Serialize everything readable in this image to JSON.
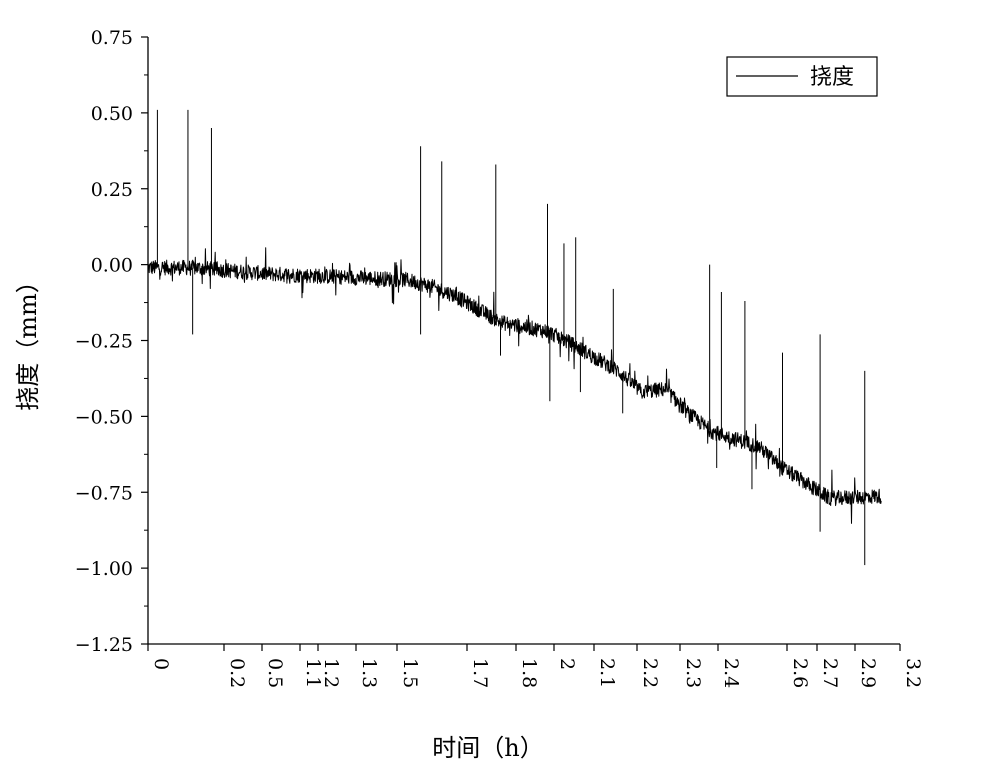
{
  "chart_data": {
    "type": "line",
    "title": "",
    "xlabel": "时间（h）",
    "ylabel": "挠度（mm）",
    "ylim": [
      -1.25,
      0.75
    ],
    "yticks": [
      0.75,
      0.5,
      0.25,
      0.0,
      -0.25,
      -0.5,
      -0.75,
      -1.0,
      -1.25
    ],
    "ytick_labels": [
      "0.75",
      "0.50",
      "0.25",
      "0.00",
      "−0.25",
      "−0.50",
      "−0.75",
      "−1.00",
      "−1.25"
    ],
    "xtick_labels": [
      "0",
      "0.2",
      "0.5",
      "1.1",
      "1.2",
      "1.3",
      "1.5",
      "1.7",
      "1.8",
      "2",
      "2.1",
      "2.2",
      "2.3",
      "2.4",
      "2.6",
      "2.7",
      "2.9",
      "3.2"
    ],
    "x_axis_note": "nonuniform categorical tick positions",
    "legend": {
      "entries": [
        "挠度"
      ],
      "position": "top-right"
    },
    "grid": false,
    "series": [
      {
        "name": "挠度",
        "color": "#000000",
        "trend": [
          {
            "x": 0.0,
            "y": -0.01
          },
          {
            "x": 0.2,
            "y": -0.01
          },
          {
            "x": 0.5,
            "y": -0.03
          },
          {
            "x": 1.1,
            "y": -0.05
          },
          {
            "x": 1.2,
            "y": -0.07
          },
          {
            "x": 1.3,
            "y": -0.1
          },
          {
            "x": 1.5,
            "y": -0.19
          },
          {
            "x": 1.7,
            "y": -0.22
          },
          {
            "x": 1.8,
            "y": -0.26
          },
          {
            "x": 2.0,
            "y": -0.35
          },
          {
            "x": 2.1,
            "y": -0.42
          },
          {
            "x": 2.2,
            "y": -0.41
          },
          {
            "x": 2.3,
            "y": -0.49
          },
          {
            "x": 2.4,
            "y": -0.55
          },
          {
            "x": 2.6,
            "y": -0.6
          },
          {
            "x": 2.7,
            "y": -0.67
          },
          {
            "x": 2.9,
            "y": -0.77
          },
          {
            "x": 3.2,
            "y": -0.76
          }
        ],
        "spikes": [
          {
            "x": 0.04,
            "y": 0.51
          },
          {
            "x": 0.17,
            "y": 0.51
          },
          {
            "x": 0.27,
            "y": 0.45
          },
          {
            "x": 1.16,
            "y": 0.39
          },
          {
            "x": 1.25,
            "y": 0.34
          },
          {
            "x": 1.48,
            "y": 0.33
          },
          {
            "x": 1.7,
            "y": 0.2
          },
          {
            "x": 1.77,
            "y": 0.07
          },
          {
            "x": 1.82,
            "y": 0.09
          },
          {
            "x": 1.98,
            "y": -0.08
          },
          {
            "x": 2.39,
            "y": 0.0
          },
          {
            "x": 2.44,
            "y": -0.09
          },
          {
            "x": 2.54,
            "y": -0.12
          },
          {
            "x": 2.7,
            "y": -0.29
          },
          {
            "x": 2.86,
            "y": -0.23
          },
          {
            "x": 3.05,
            "y": -0.35
          }
        ],
        "dips": [
          {
            "x": 0.19,
            "y": -0.23
          },
          {
            "x": 1.16,
            "y": -0.23
          },
          {
            "x": 1.5,
            "y": -0.3
          },
          {
            "x": 1.71,
            "y": -0.45
          },
          {
            "x": 1.84,
            "y": -0.42
          },
          {
            "x": 2.02,
            "y": -0.49
          },
          {
            "x": 2.3,
            "y": -0.47
          },
          {
            "x": 2.42,
            "y": -0.67
          },
          {
            "x": 2.57,
            "y": -0.74
          },
          {
            "x": 2.86,
            "y": -0.88
          },
          {
            "x": 3.05,
            "y": -0.99
          }
        ]
      }
    ]
  }
}
